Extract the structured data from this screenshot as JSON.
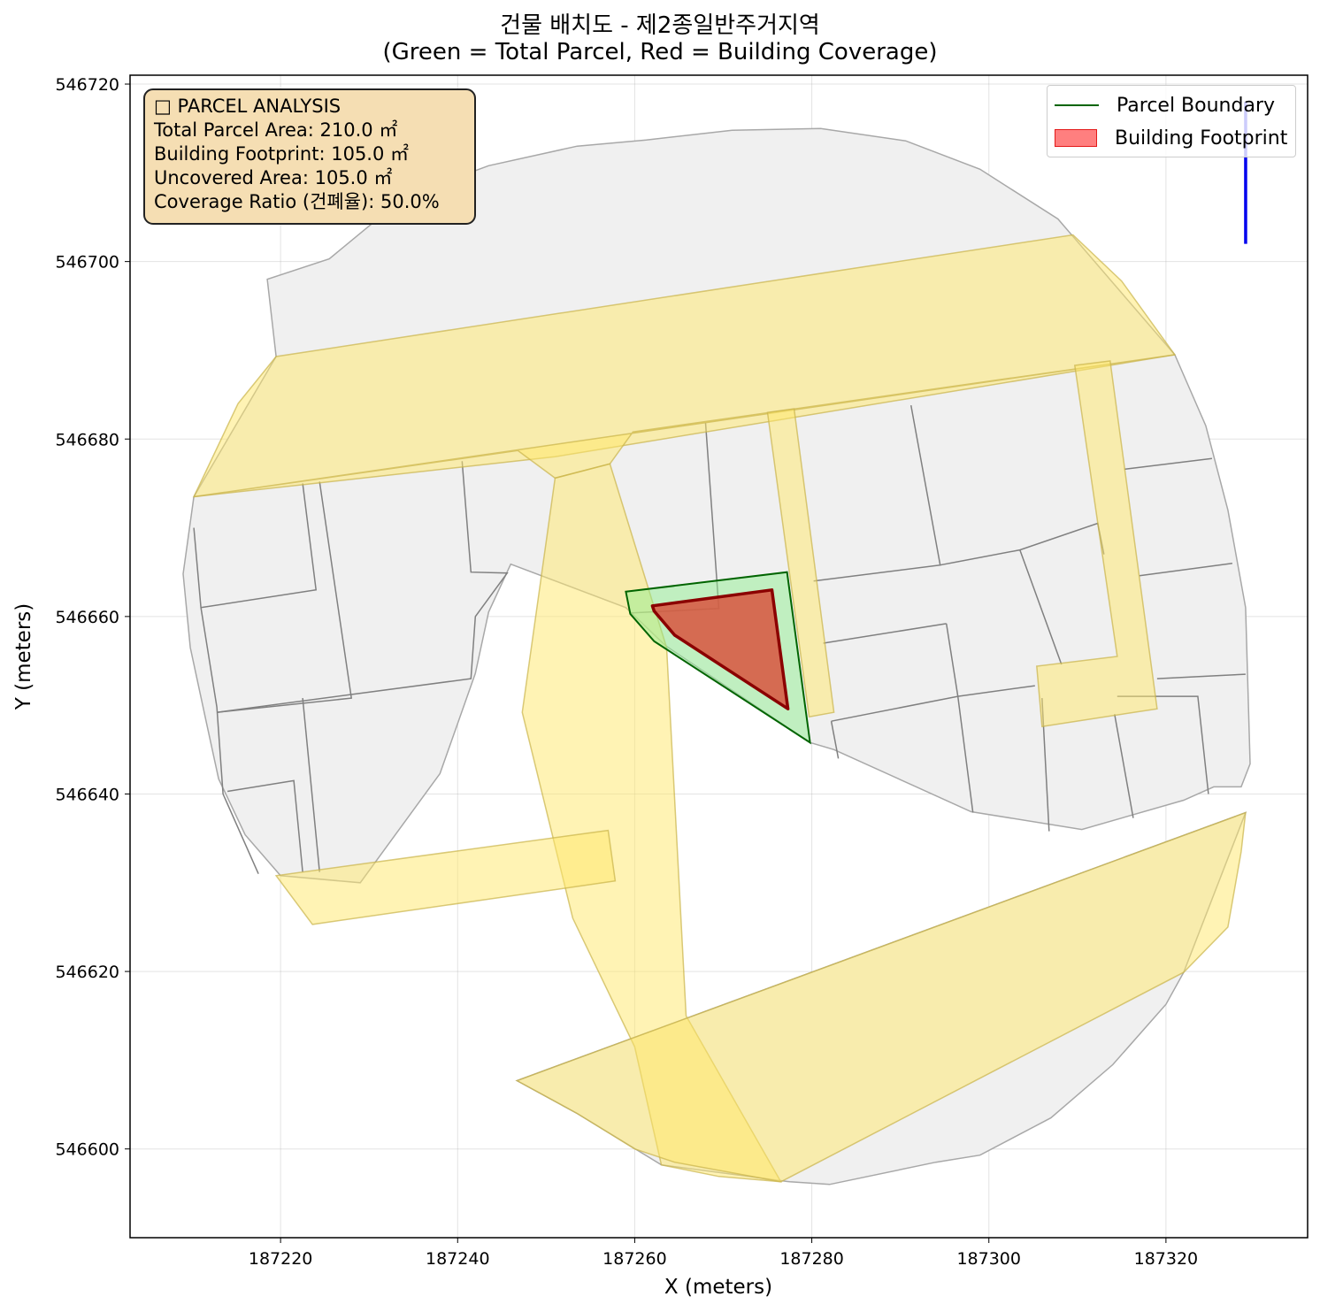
{
  "chart_data": {
    "type": "map",
    "title_line1": "건물 배치도 - 제2종일반주거지역",
    "title_line2": "(Green = Total Parcel, Red = Building Coverage)",
    "xlabel": "X (meters)",
    "ylabel": "Y (meters)",
    "xlim": [
      187203,
      187336
    ],
    "ylim": [
      546590,
      546721
    ],
    "xticks": [
      187220,
      187240,
      187260,
      187280,
      187300,
      187320
    ],
    "yticks": [
      546600,
      546620,
      546640,
      546660,
      546680,
      546700,
      546720
    ],
    "grid": true,
    "legend_position": "upper right",
    "legend": [
      {
        "label": "Parcel Boundary",
        "kind": "line",
        "color": "#006400"
      },
      {
        "label": "Building Footprint",
        "kind": "patch",
        "color": "#ff0000"
      }
    ],
    "colors": {
      "surrounding_parcels": "#f0f0f0",
      "parcel_edges": "#808080",
      "roads": "#ffe76a",
      "target_parcel": "#90ee90",
      "target_parcel_edge": "#006400",
      "building": "#d8533e",
      "building_edge": "#8b0000",
      "north_arrow": "#0000ee"
    },
    "target_parcel": {
      "polygon": [
        [
          187259.0,
          546662.8
        ],
        [
          187277.2,
          546665.0
        ],
        [
          187279.8,
          546645.8
        ],
        [
          187262.2,
          546657.2
        ],
        [
          187259.5,
          546660.3
        ]
      ],
      "area_m2": 210.0
    },
    "building_footprint": {
      "polygon": [
        [
          187262.0,
          546661.2
        ],
        [
          187275.5,
          546663.0
        ],
        [
          187277.3,
          546649.6
        ],
        [
          187264.5,
          546657.9
        ],
        [
          187262.2,
          546660.6
        ]
      ],
      "area_m2": 105.0
    },
    "roads": [
      [
        [
          187210.2,
          546673.5
        ],
        [
          187215.2,
          546684.0
        ],
        [
          187219.5,
          546689.3
        ],
        [
          187309.5,
          546703.0
        ],
        [
          187315.0,
          546697.8
        ],
        [
          187321.0,
          546689.5
        ],
        [
          187251.0,
          546678.0
        ],
        [
          187210.2,
          546673.5
        ]
      ],
      [
        [
          187210.2,
          546673.5
        ],
        [
          187246.8,
          546678.7
        ],
        [
          187251.0,
          546675.6
        ],
        [
          187257.2,
          546677.2
        ],
        [
          187259.8,
          546680.8
        ],
        [
          187321.0,
          546689.5
        ],
        [
          187210.2,
          546673.5
        ]
      ],
      [
        [
          187251.0,
          546675.6
        ],
        [
          187257.2,
          546677.2
        ],
        [
          187263.6,
          546656.5
        ],
        [
          187265.8,
          546615.0
        ],
        [
          187276.5,
          546596.3
        ],
        [
          187269.5,
          546596.9
        ],
        [
          187263.0,
          546598.2
        ],
        [
          187260.0,
          546611.5
        ],
        [
          187253.0,
          546626.0
        ],
        [
          187247.3,
          546649.2
        ],
        [
          187251.0,
          546675.6
        ]
      ],
      [
        [
          187246.7,
          546607.7
        ],
        [
          187253.5,
          546604.0
        ],
        [
          187260.0,
          546600.0
        ],
        [
          187264.5,
          546598.5
        ],
        [
          187276.5,
          546596.3
        ],
        [
          187322.0,
          546619.9
        ],
        [
          187327.0,
          546625.0
        ],
        [
          187328.5,
          546633.5
        ],
        [
          187329.0,
          546637.9
        ],
        [
          187246.7,
          546607.7
        ]
      ],
      [
        [
          187219.5,
          546630.8
        ],
        [
          187223.6,
          546625.3
        ],
        [
          187257.8,
          546630.2
        ],
        [
          187257.0,
          546635.9
        ],
        [
          187219.5,
          546630.8
        ]
      ],
      [
        [
          187275.0,
          546683.0
        ],
        [
          187278.0,
          546683.4
        ],
        [
          187282.5,
          546649.2
        ],
        [
          187279.7,
          546648.7
        ],
        [
          187275.0,
          546683.0
        ]
      ],
      [
        [
          187309.7,
          546688.3
        ],
        [
          187313.7,
          546688.8
        ],
        [
          187319.0,
          546649.6
        ],
        [
          187306.0,
          546647.6
        ],
        [
          187305.4,
          546654.4
        ],
        [
          187314.5,
          546655.5
        ],
        [
          187309.7,
          546688.3
        ]
      ]
    ],
    "outer_boundary": [
      [
        187219.5,
        546689.3
      ],
      [
        187218.5,
        546698.0
      ],
      [
        187225.5,
        546700.3
      ],
      [
        187234.0,
        546707.3
      ],
      [
        187243.5,
        546710.8
      ],
      [
        187253.5,
        546713.0
      ],
      [
        187261.3,
        546713.7
      ],
      [
        187271.0,
        546714.8
      ],
      [
        187281.0,
        546715.0
      ],
      [
        187290.6,
        546713.6
      ],
      [
        187299.0,
        546710.4
      ],
      [
        187307.8,
        546704.8
      ],
      [
        187321.0,
        546689.5
      ],
      [
        187324.5,
        546681.5
      ],
      [
        187327.0,
        546672.0
      ],
      [
        187329.0,
        546661.0
      ],
      [
        187329.5,
        546643.4
      ],
      [
        187328.5,
        546640.8
      ],
      [
        187325.4,
        546640.8
      ],
      [
        187322.0,
        546639.3
      ],
      [
        187310.5,
        546636.0
      ],
      [
        187298.0,
        546638.0
      ],
      [
        187282.5,
        546645.0
      ],
      [
        187279.8,
        546645.8
      ],
      [
        187263.5,
        546656.7
      ],
      [
        187259.0,
        546661.0
      ],
      [
        187246.0,
        546665.9
      ],
      [
        187243.5,
        546660.5
      ],
      [
        187242.0,
        546653.6
      ],
      [
        187238.0,
        546642.3
      ],
      [
        187229.0,
        546630.0
      ],
      [
        187220.0,
        546630.8
      ],
      [
        187216.0,
        546635.4
      ],
      [
        187213.0,
        546641.7
      ],
      [
        187211.5,
        546648.6
      ],
      [
        187209.8,
        546656.5
      ],
      [
        187209.0,
        546664.8
      ],
      [
        187210.2,
        546673.5
      ]
    ],
    "south_boundary": [
      [
        187246.7,
        546607.7
      ],
      [
        187253.5,
        546604.0
      ],
      [
        187263.0,
        546598.2
      ],
      [
        187277.5,
        546596.3
      ],
      [
        187282.0,
        546596.0
      ],
      [
        187294.0,
        546598.5
      ],
      [
        187299.0,
        546599.3
      ],
      [
        187307.0,
        546603.5
      ],
      [
        187314.0,
        546609.5
      ],
      [
        187320.0,
        546616.3
      ],
      [
        187322.0,
        546619.9
      ],
      [
        187329.0,
        546637.9
      ]
    ],
    "parcel_lines": [
      [
        [
          187210.2,
          546670.0
        ],
        [
          187211.0,
          546661.0
        ],
        [
          187212.8,
          546649.8
        ],
        [
          187213.5,
          546640.0
        ],
        [
          187217.5,
          546631.0
        ]
      ],
      [
        [
          187211.0,
          546661.0
        ],
        [
          187224.0,
          546663.0
        ],
        [
          187222.5,
          546675.0
        ]
      ],
      [
        [
          187212.8,
          546649.2
        ],
        [
          187228.0,
          546650.8
        ],
        [
          187224.4,
          546675.2
        ]
      ],
      [
        [
          187212.8,
          546649.2
        ],
        [
          187241.5,
          546653.0
        ],
        [
          187242.0,
          546660.0
        ],
        [
          187245.6,
          546664.9
        ],
        [
          187241.5,
          546665.0
        ],
        [
          187240.5,
          546677.5
        ]
      ],
      [
        [
          187214.0,
          546640.3
        ],
        [
          187221.5,
          546641.5
        ],
        [
          187222.5,
          546631.2
        ]
      ],
      [
        [
          187222.5,
          546650.8
        ],
        [
          187224.4,
          546631.2
        ]
      ],
      [
        [
          187259.5,
          546660.4
        ],
        [
          187269.5,
          546660.9
        ],
        [
          187268.0,
          546681.8
        ]
      ],
      [
        [
          187280.2,
          546664.0
        ],
        [
          187294.5,
          546665.8
        ],
        [
          187291.2,
          546683.8
        ]
      ],
      [
        [
          187281.3,
          546657.0
        ],
        [
          187295.2,
          546659.2
        ]
      ],
      [
        [
          187282.2,
          546648.2
        ],
        [
          187296.5,
          546651.0
        ],
        [
          187298.2,
          546637.9
        ]
      ],
      [
        [
          187282.2,
          546648.2
        ],
        [
          187283.0,
          546644.0
        ]
      ],
      [
        [
          187294.5,
          546665.8
        ],
        [
          187303.5,
          546667.5
        ],
        [
          187312.3,
          546670.5
        ],
        [
          187313.0,
          546667.0
        ]
      ],
      [
        [
          187303.5,
          546667.5
        ],
        [
          187308.2,
          546654.6
        ]
      ],
      [
        [
          187296.5,
          546651.0
        ],
        [
          187305.2,
          546652.2
        ]
      ],
      [
        [
          187295.2,
          546659.2
        ],
        [
          187296.5,
          546651.0
        ]
      ],
      [
        [
          187306.0,
          546650.8
        ],
        [
          187306.8,
          546635.8
        ]
      ],
      [
        [
          187314.2,
          546649.0
        ],
        [
          187316.3,
          546637.3
        ]
      ],
      [
        [
          187314.5,
          546651.0
        ],
        [
          187323.6,
          546651.0
        ],
        [
          187324.8,
          546640.0
        ]
      ],
      [
        [
          187319.0,
          546653.0
        ],
        [
          187329.0,
          546653.5
        ]
      ],
      [
        [
          187317.0,
          546664.6
        ],
        [
          187327.5,
          546666.0
        ]
      ],
      [
        [
          187315.3,
          546676.6
        ],
        [
          187325.2,
          546677.8
        ]
      ]
    ],
    "annotations": [
      "□ PARCEL ANALYSIS",
      "Total Parcel Area: 210.0 ㎡",
      "Building Footprint: 105.0 ㎡",
      "Uncovered Area: 105.0 ㎡",
      "Coverage Ratio (건폐율): 50.0%"
    ],
    "north_arrow": {
      "x": 187329,
      "y_from": 546702,
      "y_to": 546718
    }
  }
}
